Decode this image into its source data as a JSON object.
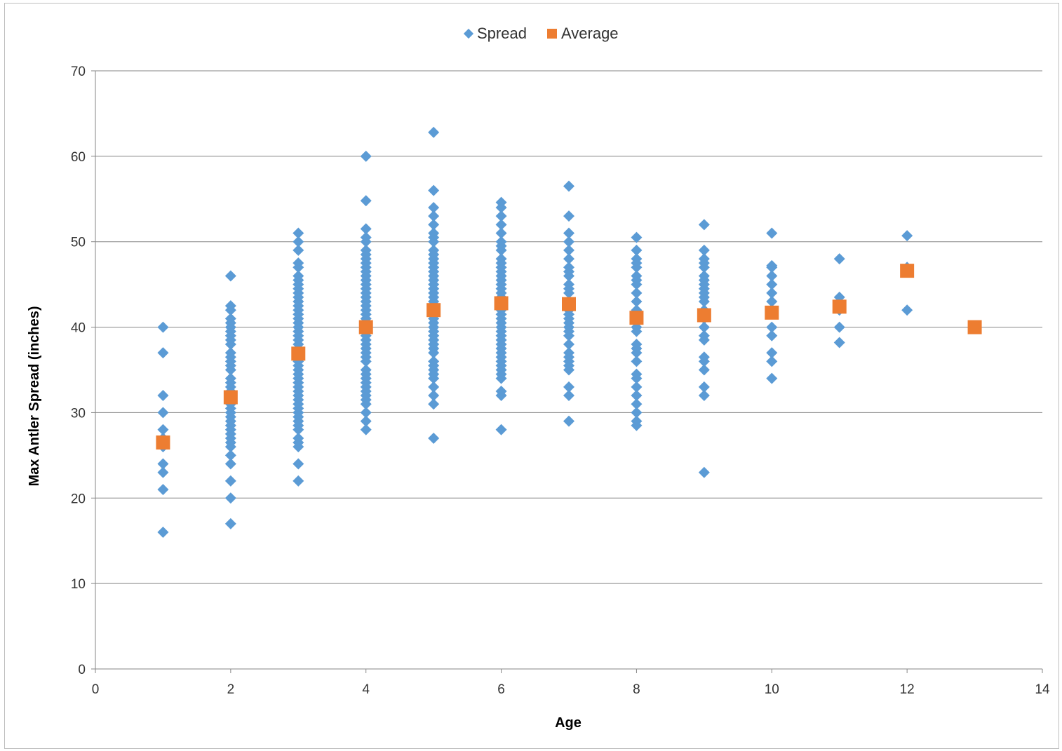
{
  "chart_data": {
    "type": "scatter",
    "title": "",
    "xlabel": "Age",
    "ylabel": "Max Antler Spread (inches)",
    "xlim": [
      0,
      14
    ],
    "ylim": [
      0,
      70
    ],
    "x_ticks": [
      0,
      2,
      4,
      6,
      8,
      10,
      12,
      14
    ],
    "y_ticks": [
      0,
      10,
      20,
      30,
      40,
      50,
      60,
      70
    ],
    "grid": "horizontal",
    "legend_position": "top",
    "series": [
      {
        "name": "Spread",
        "marker": "diamond",
        "color": "#5B9BD5",
        "points": [
          [
            1,
            16
          ],
          [
            1,
            21
          ],
          [
            1,
            23
          ],
          [
            1,
            24
          ],
          [
            1,
            26
          ],
          [
            1,
            27
          ],
          [
            1,
            28
          ],
          [
            1,
            30
          ],
          [
            1,
            32
          ],
          [
            1,
            37
          ],
          [
            1,
            40
          ],
          [
            2,
            17
          ],
          [
            2,
            20
          ],
          [
            2,
            22
          ],
          [
            2,
            24
          ],
          [
            2,
            25
          ],
          [
            2,
            26
          ],
          [
            2,
            26.5
          ],
          [
            2,
            27
          ],
          [
            2,
            27.5
          ],
          [
            2,
            28
          ],
          [
            2,
            28.5
          ],
          [
            2,
            29
          ],
          [
            2,
            29.5
          ],
          [
            2,
            30
          ],
          [
            2,
            30.5
          ],
          [
            2,
            31
          ],
          [
            2,
            31.5
          ],
          [
            2,
            32
          ],
          [
            2,
            32.5
          ],
          [
            2,
            33
          ],
          [
            2,
            33.5
          ],
          [
            2,
            34
          ],
          [
            2,
            35
          ],
          [
            2,
            35.5
          ],
          [
            2,
            36
          ],
          [
            2,
            36.5
          ],
          [
            2,
            37
          ],
          [
            2,
            38
          ],
          [
            2,
            38.5
          ],
          [
            2,
            39
          ],
          [
            2,
            39.5
          ],
          [
            2,
            40
          ],
          [
            2,
            40.5
          ],
          [
            2,
            41
          ],
          [
            2,
            42
          ],
          [
            2,
            42.5
          ],
          [
            2,
            46
          ],
          [
            3,
            22
          ],
          [
            3,
            24
          ],
          [
            3,
            26
          ],
          [
            3,
            26.5
          ],
          [
            3,
            27
          ],
          [
            3,
            28
          ],
          [
            3,
            28.5
          ],
          [
            3,
            29
          ],
          [
            3,
            29.5
          ],
          [
            3,
            30
          ],
          [
            3,
            30.5
          ],
          [
            3,
            31
          ],
          [
            3,
            31.5
          ],
          [
            3,
            32
          ],
          [
            3,
            32.5
          ],
          [
            3,
            33
          ],
          [
            3,
            33.5
          ],
          [
            3,
            34
          ],
          [
            3,
            34.5
          ],
          [
            3,
            35
          ],
          [
            3,
            35.5
          ],
          [
            3,
            36
          ],
          [
            3,
            36.5
          ],
          [
            3,
            37
          ],
          [
            3,
            37.5
          ],
          [
            3,
            38
          ],
          [
            3,
            38.5
          ],
          [
            3,
            39
          ],
          [
            3,
            39.5
          ],
          [
            3,
            40
          ],
          [
            3,
            40.5
          ],
          [
            3,
            41
          ],
          [
            3,
            41.5
          ],
          [
            3,
            42
          ],
          [
            3,
            42.5
          ],
          [
            3,
            43
          ],
          [
            3,
            43.5
          ],
          [
            3,
            44
          ],
          [
            3,
            44.5
          ],
          [
            3,
            45
          ],
          [
            3,
            45.5
          ],
          [
            3,
            46
          ],
          [
            3,
            47
          ],
          [
            3,
            47.5
          ],
          [
            3,
            49
          ],
          [
            3,
            50
          ],
          [
            3,
            51
          ],
          [
            4,
            28
          ],
          [
            4,
            29
          ],
          [
            4,
            30
          ],
          [
            4,
            31
          ],
          [
            4,
            31.5
          ],
          [
            4,
            32
          ],
          [
            4,
            32.5
          ],
          [
            4,
            33
          ],
          [
            4,
            33.5
          ],
          [
            4,
            34
          ],
          [
            4,
            34.5
          ],
          [
            4,
            35
          ],
          [
            4,
            36
          ],
          [
            4,
            36.5
          ],
          [
            4,
            37
          ],
          [
            4,
            37.5
          ],
          [
            4,
            38
          ],
          [
            4,
            38.5
          ],
          [
            4,
            39
          ],
          [
            4,
            39.5
          ],
          [
            4,
            40
          ],
          [
            4,
            40.5
          ],
          [
            4,
            41
          ],
          [
            4,
            41.5
          ],
          [
            4,
            42
          ],
          [
            4,
            42.5
          ],
          [
            4,
            43
          ],
          [
            4,
            43.5
          ],
          [
            4,
            44
          ],
          [
            4,
            44.5
          ],
          [
            4,
            45
          ],
          [
            4,
            45.5
          ],
          [
            4,
            46
          ],
          [
            4,
            46.5
          ],
          [
            4,
            47
          ],
          [
            4,
            47.5
          ],
          [
            4,
            48
          ],
          [
            4,
            48.5
          ],
          [
            4,
            49
          ],
          [
            4,
            50
          ],
          [
            4,
            50.5
          ],
          [
            4,
            51.5
          ],
          [
            4,
            54.8
          ],
          [
            4,
            60
          ],
          [
            5,
            27
          ],
          [
            5,
            31
          ],
          [
            5,
            32
          ],
          [
            5,
            33
          ],
          [
            5,
            34
          ],
          [
            5,
            34.5
          ],
          [
            5,
            35
          ],
          [
            5,
            35.5
          ],
          [
            5,
            36
          ],
          [
            5,
            37
          ],
          [
            5,
            37.5
          ],
          [
            5,
            38
          ],
          [
            5,
            38.5
          ],
          [
            5,
            39
          ],
          [
            5,
            39.5
          ],
          [
            5,
            40
          ],
          [
            5,
            40.5
          ],
          [
            5,
            41
          ],
          [
            5,
            41.5
          ],
          [
            5,
            42
          ],
          [
            5,
            42.5
          ],
          [
            5,
            43
          ],
          [
            5,
            43.5
          ],
          [
            5,
            44
          ],
          [
            5,
            44.5
          ],
          [
            5,
            45
          ],
          [
            5,
            45.5
          ],
          [
            5,
            46
          ],
          [
            5,
            46.5
          ],
          [
            5,
            47
          ],
          [
            5,
            47.5
          ],
          [
            5,
            48
          ],
          [
            5,
            48.5
          ],
          [
            5,
            49
          ],
          [
            5,
            50
          ],
          [
            5,
            50.5
          ],
          [
            5,
            51
          ],
          [
            5,
            52
          ],
          [
            5,
            53
          ],
          [
            5,
            54
          ],
          [
            5,
            56
          ],
          [
            5,
            62.8
          ],
          [
            6,
            28
          ],
          [
            6,
            32
          ],
          [
            6,
            32.5
          ],
          [
            6,
            34
          ],
          [
            6,
            34.5
          ],
          [
            6,
            35
          ],
          [
            6,
            35.5
          ],
          [
            6,
            36
          ],
          [
            6,
            36.5
          ],
          [
            6,
            37
          ],
          [
            6,
            37.5
          ],
          [
            6,
            38
          ],
          [
            6,
            38.5
          ],
          [
            6,
            39
          ],
          [
            6,
            39.5
          ],
          [
            6,
            40
          ],
          [
            6,
            40.5
          ],
          [
            6,
            41
          ],
          [
            6,
            41.5
          ],
          [
            6,
            42
          ],
          [
            6,
            42.5
          ],
          [
            6,
            43
          ],
          [
            6,
            43.5
          ],
          [
            6,
            44
          ],
          [
            6,
            44.5
          ],
          [
            6,
            45
          ],
          [
            6,
            45.5
          ],
          [
            6,
            46
          ],
          [
            6,
            46.5
          ],
          [
            6,
            47
          ],
          [
            6,
            47.5
          ],
          [
            6,
            48
          ],
          [
            6,
            49
          ],
          [
            6,
            49.5
          ],
          [
            6,
            50
          ],
          [
            6,
            51
          ],
          [
            6,
            52
          ],
          [
            6,
            53
          ],
          [
            6,
            54
          ],
          [
            6,
            54.6
          ],
          [
            7,
            29
          ],
          [
            7,
            32
          ],
          [
            7,
            33
          ],
          [
            7,
            35
          ],
          [
            7,
            35.5
          ],
          [
            7,
            36
          ],
          [
            7,
            36.5
          ],
          [
            7,
            37
          ],
          [
            7,
            38
          ],
          [
            7,
            39
          ],
          [
            7,
            39.5
          ],
          [
            7,
            40
          ],
          [
            7,
            40.5
          ],
          [
            7,
            41
          ],
          [
            7,
            41.5
          ],
          [
            7,
            42
          ],
          [
            7,
            42.5
          ],
          [
            7,
            43
          ],
          [
            7,
            44
          ],
          [
            7,
            44.5
          ],
          [
            7,
            45
          ],
          [
            7,
            46
          ],
          [
            7,
            46.5
          ],
          [
            7,
            47
          ],
          [
            7,
            48
          ],
          [
            7,
            49
          ],
          [
            7,
            50
          ],
          [
            7,
            51
          ],
          [
            7,
            53
          ],
          [
            7,
            56.5
          ],
          [
            8,
            28.5
          ],
          [
            8,
            29
          ],
          [
            8,
            30
          ],
          [
            8,
            31
          ],
          [
            8,
            32
          ],
          [
            8,
            33
          ],
          [
            8,
            34
          ],
          [
            8,
            34.5
          ],
          [
            8,
            36
          ],
          [
            8,
            37
          ],
          [
            8,
            37.5
          ],
          [
            8,
            38
          ],
          [
            8,
            39.5
          ],
          [
            8,
            40
          ],
          [
            8,
            41
          ],
          [
            8,
            42
          ],
          [
            8,
            43
          ],
          [
            8,
            44
          ],
          [
            8,
            45
          ],
          [
            8,
            45.5
          ],
          [
            8,
            46
          ],
          [
            8,
            47
          ],
          [
            8,
            47.5
          ],
          [
            8,
            48
          ],
          [
            8,
            49
          ],
          [
            8,
            50.5
          ],
          [
            9,
            23
          ],
          [
            9,
            32
          ],
          [
            9,
            33
          ],
          [
            9,
            35
          ],
          [
            9,
            36
          ],
          [
            9,
            36.5
          ],
          [
            9,
            38.5
          ],
          [
            9,
            39
          ],
          [
            9,
            40
          ],
          [
            9,
            41
          ],
          [
            9,
            42
          ],
          [
            9,
            43
          ],
          [
            9,
            43.5
          ],
          [
            9,
            44
          ],
          [
            9,
            44.5
          ],
          [
            9,
            45
          ],
          [
            9,
            45.5
          ],
          [
            9,
            46
          ],
          [
            9,
            47
          ],
          [
            9,
            47.5
          ],
          [
            9,
            48
          ],
          [
            9,
            49
          ],
          [
            9,
            52
          ],
          [
            10,
            34
          ],
          [
            10,
            36
          ],
          [
            10,
            37
          ],
          [
            10,
            39
          ],
          [
            10,
            40
          ],
          [
            10,
            42
          ],
          [
            10,
            43
          ],
          [
            10,
            44
          ],
          [
            10,
            45
          ],
          [
            10,
            46
          ],
          [
            10,
            47
          ],
          [
            10,
            47.2
          ],
          [
            10,
            51
          ],
          [
            11,
            38.2
          ],
          [
            11,
            40
          ],
          [
            11,
            42
          ],
          [
            11,
            43.5
          ],
          [
            11,
            48
          ],
          [
            12,
            42
          ],
          [
            12,
            47
          ],
          [
            12,
            50.7
          ]
        ]
      },
      {
        "name": "Average",
        "marker": "square",
        "color": "#ED7D31",
        "points": [
          [
            1,
            26.5
          ],
          [
            2,
            31.8
          ],
          [
            3,
            36.9
          ],
          [
            4,
            40.0
          ],
          [
            5,
            42.0
          ],
          [
            6,
            42.8
          ],
          [
            7,
            42.7
          ],
          [
            8,
            41.1
          ],
          [
            9,
            41.4
          ],
          [
            10,
            41.7
          ],
          [
            11,
            42.4
          ],
          [
            12,
            46.6
          ],
          [
            13,
            40.0
          ]
        ]
      }
    ]
  }
}
